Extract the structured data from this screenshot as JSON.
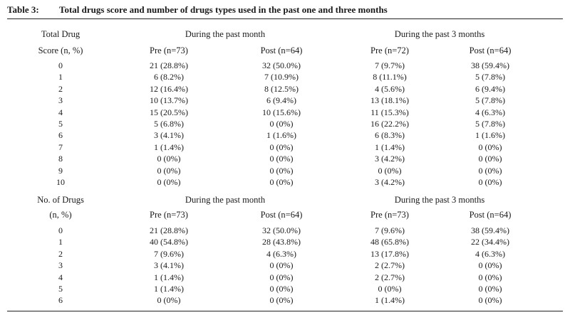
{
  "caption": {
    "number": "Table 3:",
    "title": "Total drugs score and number of drugs types used in the past one and three months"
  },
  "section1": {
    "row_header_line1": "Total Drug",
    "row_header_line2": "Score (n, %)",
    "group_left": "During the past month",
    "group_right": "During the past 3 months",
    "columns": [
      "Pre (n=73)",
      "Post (n=64)",
      "Pre (n=72)",
      "Post (n=64)"
    ],
    "rows": [
      [
        "0",
        "21 (28.8%)",
        "32 (50.0%)",
        "7 (9.7%)",
        "38 (59.4%)"
      ],
      [
        "1",
        "6 (8.2%)",
        "7 (10.9%)",
        "8 (11.1%)",
        "5 (7.8%)"
      ],
      [
        "2",
        "12 (16.4%)",
        "8 (12.5%)",
        "4 (5.6%)",
        "6 (9.4%)"
      ],
      [
        "3",
        "10 (13.7%)",
        "6 (9.4%)",
        "13 (18.1%)",
        "5 (7.8%)"
      ],
      [
        "4",
        "15 (20.5%)",
        "10 (15.6%)",
        "11 (15.3%)",
        "4 (6.3%)"
      ],
      [
        "5",
        "5 (6.8%)",
        "0 (0%)",
        "16 (22.2%)",
        "5 (7.8%)"
      ],
      [
        "6",
        "3 (4.1%)",
        "1 (1.6%)",
        "6 (8.3%)",
        "1 (1.6%)"
      ],
      [
        "7",
        "1 (1.4%)",
        "0 (0%)",
        "1 (1.4%)",
        "0 (0%)"
      ],
      [
        "8",
        "0 (0%)",
        "0 (0%)",
        "3 (4.2%)",
        "0 (0%)"
      ],
      [
        "9",
        "0 (0%)",
        "0 (0%)",
        "0 (0%)",
        "0 (0%)"
      ],
      [
        "10",
        "0 (0%)",
        "0 (0%)",
        "3 (4.2%)",
        "0 (0%)"
      ]
    ]
  },
  "section2": {
    "row_header_line1": "No. of Drugs",
    "row_header_line2": "(n, %)",
    "group_left": "During the past month",
    "group_right": "During the past 3 months",
    "columns": [
      "Pre (n=73)",
      "Post (n=64)",
      "Pre (n=73)",
      "Post (n=64)"
    ],
    "rows": [
      [
        "0",
        "21 (28.8%)",
        "32 (50.0%)",
        "7 (9.6%)",
        "38 (59.4%)"
      ],
      [
        "1",
        "40 (54.8%)",
        "28 (43.8%)",
        "48 (65.8%)",
        "22 (34.4%)"
      ],
      [
        "2",
        "7 (9.6%)",
        "4 (6.3%)",
        "13 (17.8%)",
        "4 (6.3%)"
      ],
      [
        "3",
        "3 (4.1%)",
        "0 (0%)",
        "2 (2.7%)",
        "0 (0%)"
      ],
      [
        "4",
        "1 (1.4%)",
        "0 (0%)",
        "2 (2.7%)",
        "0 (0%)"
      ],
      [
        "5",
        "1 (1.4%)",
        "0 (0%)",
        "0 (0%)",
        "0 (0%)"
      ],
      [
        "6",
        "0 (0%)",
        "0 (0%)",
        "1 (1.4%)",
        "0 (0%)"
      ]
    ]
  }
}
